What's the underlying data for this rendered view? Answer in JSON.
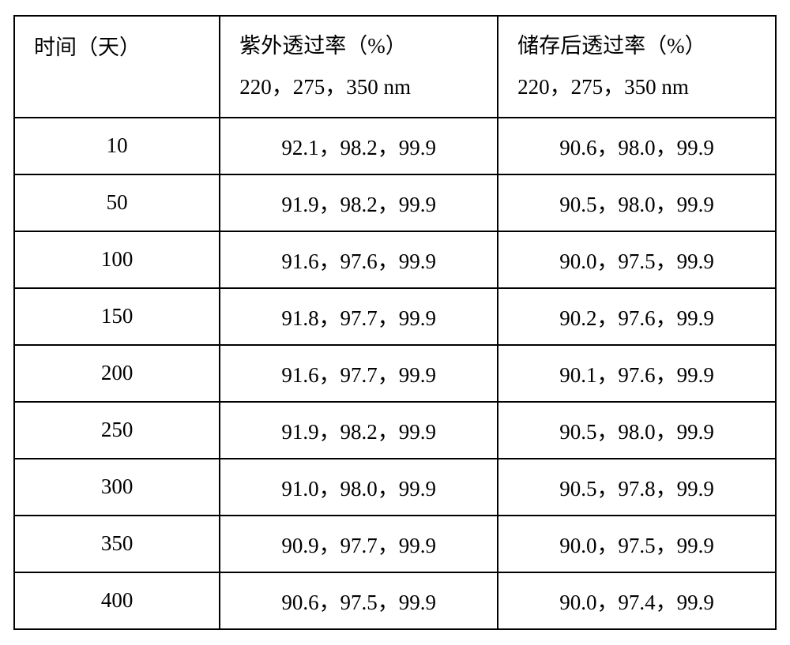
{
  "table": {
    "type": "table",
    "border_color": "#000000",
    "background_color": "#ffffff",
    "text_color": "#000000",
    "font_family": "SimSun",
    "font_size_pt": 20,
    "columns": [
      {
        "header_line1": "时间（天）",
        "header_line2": "",
        "width_percent": 27,
        "align": "center"
      },
      {
        "header_line1": "紫外透过率（%）",
        "header_line2": "220，275，350 nm",
        "width_percent": 36.5,
        "align": "center"
      },
      {
        "header_line1": "储存后透过率（%）",
        "header_line2": "220，275，350 nm",
        "width_percent": 36.5,
        "align": "center"
      }
    ],
    "rows": [
      [
        "10",
        "92.1，98.2，99.9",
        "90.6，98.0，99.9"
      ],
      [
        "50",
        "91.9，98.2，99.9",
        "90.5，98.0，99.9"
      ],
      [
        "100",
        "91.6，97.6，99.9",
        "90.0，97.5，99.9"
      ],
      [
        "150",
        "91.8，97.7，99.9",
        "90.2，97.6，99.9"
      ],
      [
        "200",
        "91.6，97.7，99.9",
        "90.1，97.6，99.9"
      ],
      [
        "250",
        "91.9，98.2，99.9",
        "90.5，98.0，99.9"
      ],
      [
        "300",
        "91.0，98.0，99.9",
        "90.5，97.8，99.9"
      ],
      [
        "350",
        "90.9，97.7，99.9",
        "90.0，97.5，99.9"
      ],
      [
        "400",
        "90.6，97.5，99.9",
        "90.0，97.4，99.9"
      ]
    ]
  }
}
